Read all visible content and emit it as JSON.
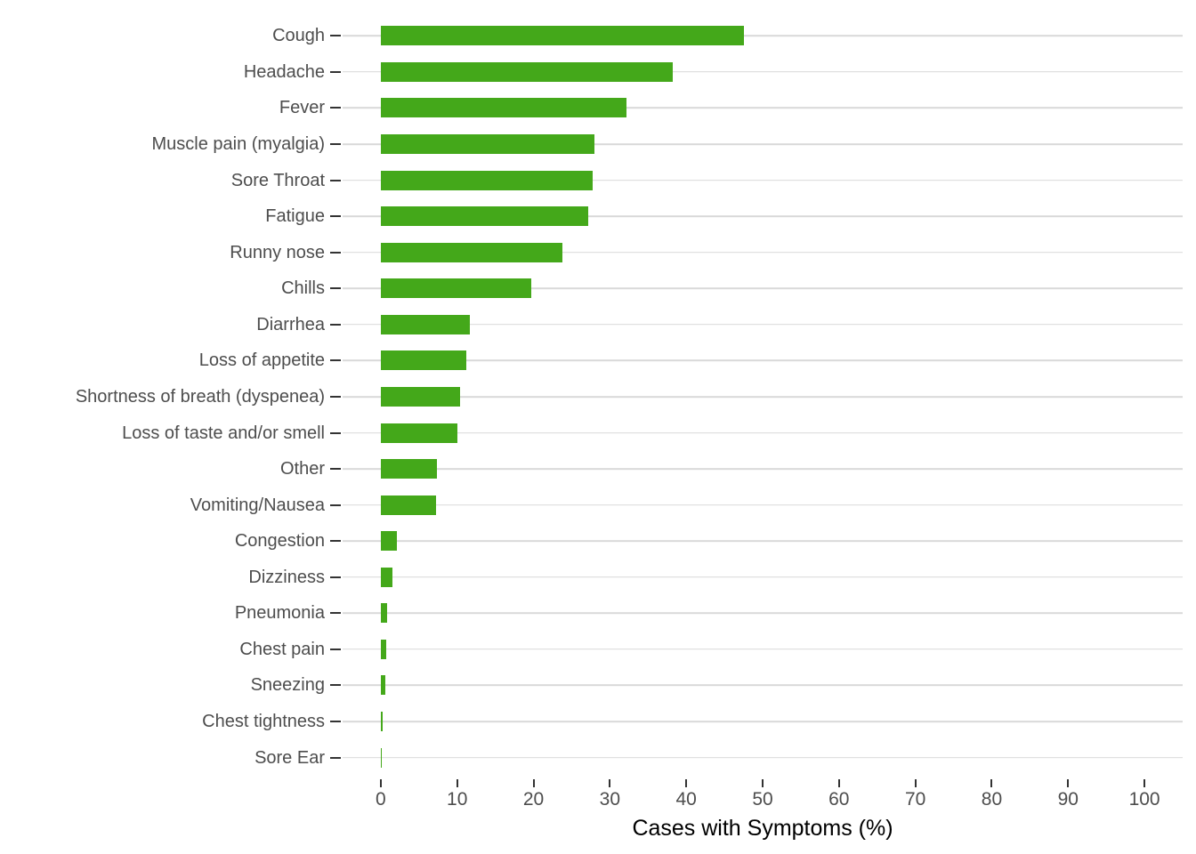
{
  "chart_data": {
    "type": "bar",
    "orientation": "horizontal",
    "title": "",
    "xlabel": "Cases with Symptoms (%)",
    "ylabel": "",
    "xlim": [
      0,
      100
    ],
    "axis_expansion_units": 5,
    "x_ticks": [
      0,
      10,
      20,
      30,
      40,
      50,
      60,
      70,
      80,
      90,
      100
    ],
    "grid": "horizontal category gridlines only, no vertical gridlines",
    "legend": "none",
    "categories": [
      "Cough",
      "Headache",
      "Fever",
      "Muscle pain (myalgia)",
      "Sore Throat",
      "Fatigue",
      "Runny nose",
      "Chills",
      "Diarrhea",
      "Loss of appetite",
      "Shortness of breath (dyspenea)",
      "Loss of taste and/or smell",
      "Other",
      "Vomiting/Nausea",
      "Congestion",
      "Dizziness",
      "Pneumonia",
      "Chest pain",
      "Sneezing",
      "Chest tightness",
      "Sore Ear"
    ],
    "values": [
      47.6,
      38.2,
      32.2,
      28.0,
      27.7,
      27.2,
      23.8,
      19.7,
      11.7,
      11.2,
      10.4,
      10.0,
      7.3,
      7.2,
      2.1,
      1.5,
      0.8,
      0.7,
      0.6,
      0.25,
      0.1
    ],
    "colors": {
      "bar": "#44a81a",
      "gridline": "#d9d9d9",
      "axis_text": "#4d4d4d",
      "tick_mark": "#333333",
      "axis_title": "#000000",
      "background": "#ffffff"
    }
  }
}
